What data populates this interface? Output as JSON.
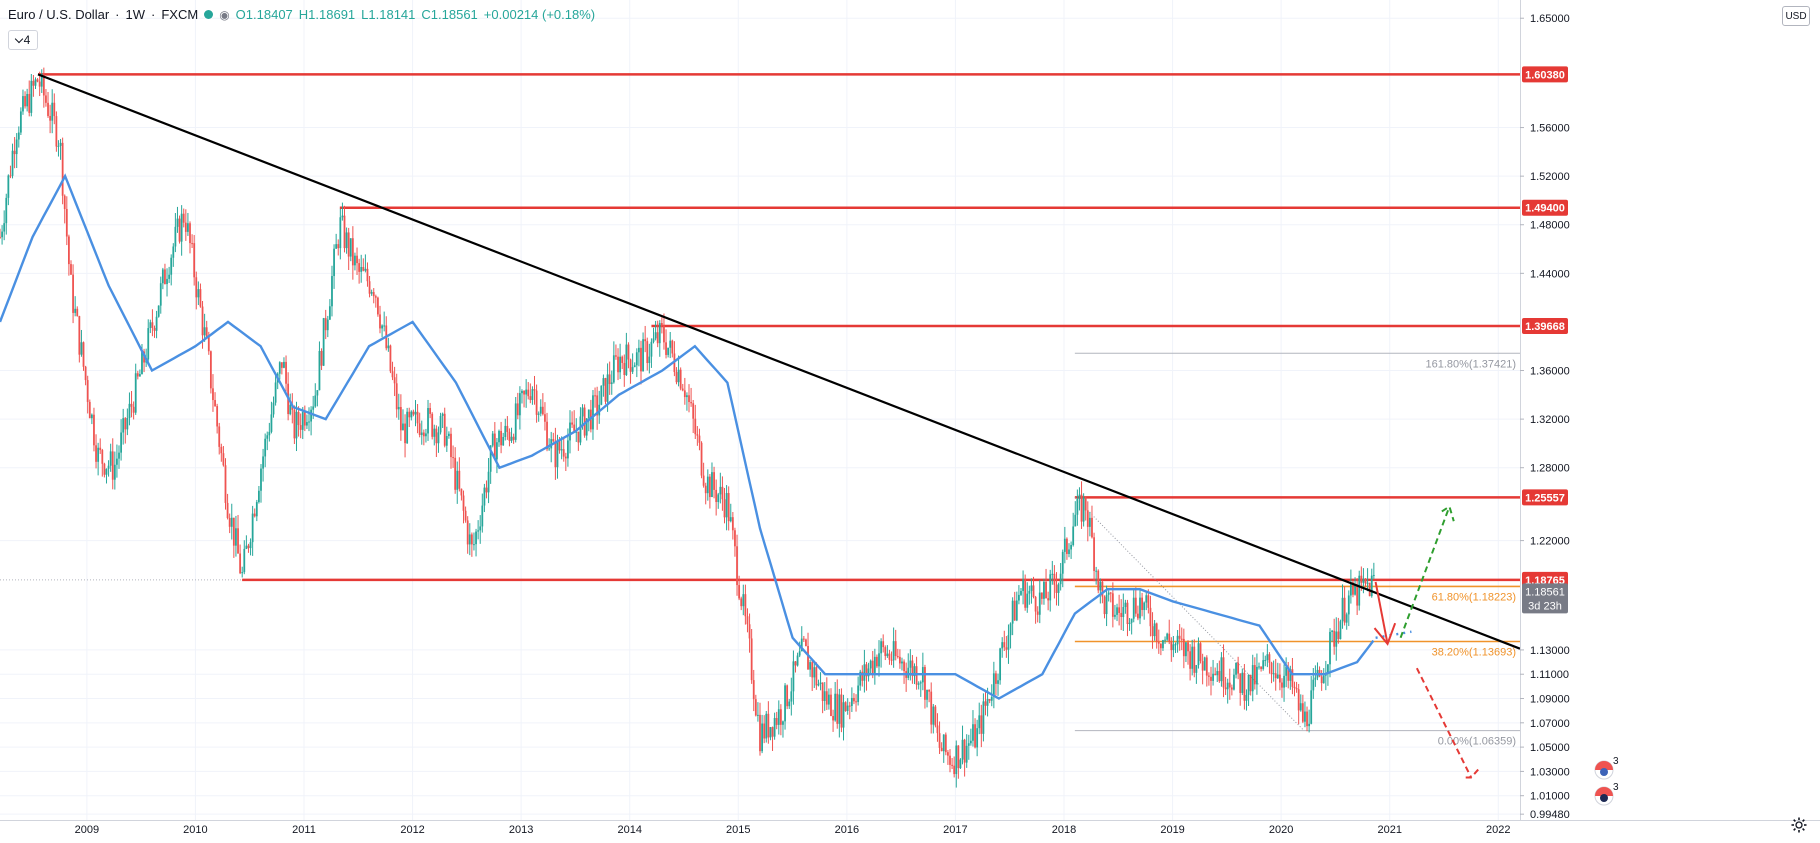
{
  "legend": {
    "symbol": "Euro / U.S. Dollar",
    "interval": "1W",
    "exchange": "FXCM",
    "o": "O1.18407",
    "h": "H1.18691",
    "l": "L1.18141",
    "c": "C1.18561",
    "change": "+0.00214 (+0.18%)",
    "indicator_count": "4"
  },
  "currency_button": "USD",
  "colors": {
    "up": "#26a69a",
    "down": "#ef5350",
    "ma": "#4a90e2",
    "resistance": "#e53935",
    "trend": "#000000",
    "fib_orange": "#f0932b",
    "fib_grey": "#b2b5be",
    "grid": "#f0f3fa"
  },
  "chart_data": {
    "type": "line",
    "title": "",
    "y_axis": {
      "ylim": [
        0.99,
        1.665
      ],
      "ticks": [
        "1.65000",
        "1.60380",
        "1.56000",
        "1.52000",
        "1.49400",
        "1.48000",
        "1.44000",
        "1.39668",
        "1.36000",
        "1.32000",
        "1.28000",
        "1.25557",
        "1.22000",
        "1.18765",
        "1.18561",
        "1.13000",
        "1.11000",
        "1.09000",
        "1.07000",
        "1.05000",
        "1.03000",
        "1.01000",
        "0.99480"
      ]
    },
    "x_axis": {
      "xlim": [
        2008.2,
        2022.2
      ],
      "ticks": [
        "2009",
        "2010",
        "2011",
        "2012",
        "2013",
        "2014",
        "2015",
        "2016",
        "2017",
        "2018",
        "2019",
        "2020",
        "2021",
        "2022"
      ]
    },
    "price_series": {
      "name": "",
      "x": [
        2008.2,
        2008.35,
        2008.55,
        2008.75,
        2008.85,
        2009.1,
        2009.25,
        2009.5,
        2009.75,
        2009.9,
        2010.1,
        2010.3,
        2010.43,
        2010.6,
        2010.8,
        2010.9,
        2011.1,
        2011.33,
        2011.5,
        2011.65,
        2011.9,
        2012.1,
        2012.3,
        2012.55,
        2012.75,
        2012.9,
        2013.1,
        2013.3,
        2013.5,
        2013.7,
        2013.9,
        2014.1,
        2014.3,
        2014.5,
        2014.7,
        2014.9,
        2015.1,
        2015.2,
        2015.4,
        2015.6,
        2015.8,
        2015.95,
        2016.1,
        2016.3,
        2016.5,
        2016.7,
        2016.85,
        2016.97,
        2017.2,
        2017.4,
        2017.6,
        2017.8,
        2017.95,
        2018.1,
        2018.2,
        2018.35,
        2018.5,
        2018.7,
        2018.9,
        2019.1,
        2019.3,
        2019.5,
        2019.7,
        2019.9,
        2020.1,
        2020.21,
        2020.4,
        2020.6,
        2020.75,
        2020.87
      ],
      "y": [
        1.47,
        1.56,
        1.6,
        1.55,
        1.43,
        1.29,
        1.28,
        1.36,
        1.45,
        1.49,
        1.38,
        1.25,
        1.19,
        1.28,
        1.37,
        1.31,
        1.34,
        1.48,
        1.44,
        1.43,
        1.31,
        1.32,
        1.31,
        1.21,
        1.3,
        1.31,
        1.35,
        1.29,
        1.31,
        1.33,
        1.37,
        1.37,
        1.39,
        1.35,
        1.27,
        1.25,
        1.13,
        1.06,
        1.08,
        1.13,
        1.09,
        1.08,
        1.1,
        1.13,
        1.12,
        1.11,
        1.05,
        1.04,
        1.06,
        1.12,
        1.18,
        1.17,
        1.19,
        1.24,
        1.25,
        1.17,
        1.16,
        1.17,
        1.14,
        1.13,
        1.12,
        1.11,
        1.1,
        1.12,
        1.1,
        1.07,
        1.12,
        1.17,
        1.18,
        1.186
      ]
    },
    "ma_series": {
      "name": "",
      "x": [
        2008.2,
        2008.5,
        2008.8,
        2009.2,
        2009.6,
        2010.0,
        2010.3,
        2010.6,
        2010.9,
        2011.2,
        2011.6,
        2012.0,
        2012.4,
        2012.8,
        2013.1,
        2013.5,
        2013.9,
        2014.3,
        2014.6,
        2014.9,
        2015.2,
        2015.5,
        2015.8,
        2016.2,
        2016.6,
        2017.0,
        2017.4,
        2017.8,
        2018.1,
        2018.4,
        2018.7,
        2019.0,
        2019.4,
        2019.8,
        2020.1,
        2020.4,
        2020.7,
        2020.87
      ],
      "y": [
        1.4,
        1.47,
        1.52,
        1.43,
        1.36,
        1.38,
        1.4,
        1.38,
        1.33,
        1.32,
        1.38,
        1.4,
        1.35,
        1.28,
        1.29,
        1.31,
        1.34,
        1.36,
        1.38,
        1.35,
        1.23,
        1.14,
        1.11,
        1.11,
        1.11,
        1.11,
        1.09,
        1.11,
        1.16,
        1.18,
        1.18,
        1.17,
        1.16,
        1.15,
        1.11,
        1.11,
        1.12,
        1.14
      ]
    },
    "levels": [
      {
        "value": 1.6038,
        "label": "1.60380",
        "x_start": 2008.55
      },
      {
        "value": 1.494,
        "label": "1.49400",
        "x_start": 2011.33
      },
      {
        "value": 1.39668,
        "label": "1.39668",
        "x_start": 2014.2
      },
      {
        "value": 1.25557,
        "label": "1.25557",
        "x_start": 2018.1
      },
      {
        "value": 1.18765,
        "label": "1.18765",
        "x_start": 2010.43
      }
    ],
    "trendline": {
      "x1": 2008.55,
      "y1": 1.6038,
      "x2": 2022.2,
      "y2": 1.131
    },
    "fibonacci": [
      {
        "ratio_label": "161.80%(1.37421)",
        "value": 1.37421,
        "color": "grey"
      },
      {
        "ratio_label": "61.80%(1.18223)",
        "value": 1.18223,
        "color": "orange"
      },
      {
        "ratio_label": "38.20%(1.13693)",
        "value": 1.13693,
        "color": "orange"
      },
      {
        "ratio_label": "0.00%(1.06359)",
        "value": 1.06359,
        "color": "grey"
      }
    ],
    "fib_x_start": 2018.1,
    "current_price": {
      "value": 1.18561,
      "label": "1.18561",
      "countdown": "3d 23h"
    },
    "events": [
      "3",
      "3"
    ]
  }
}
